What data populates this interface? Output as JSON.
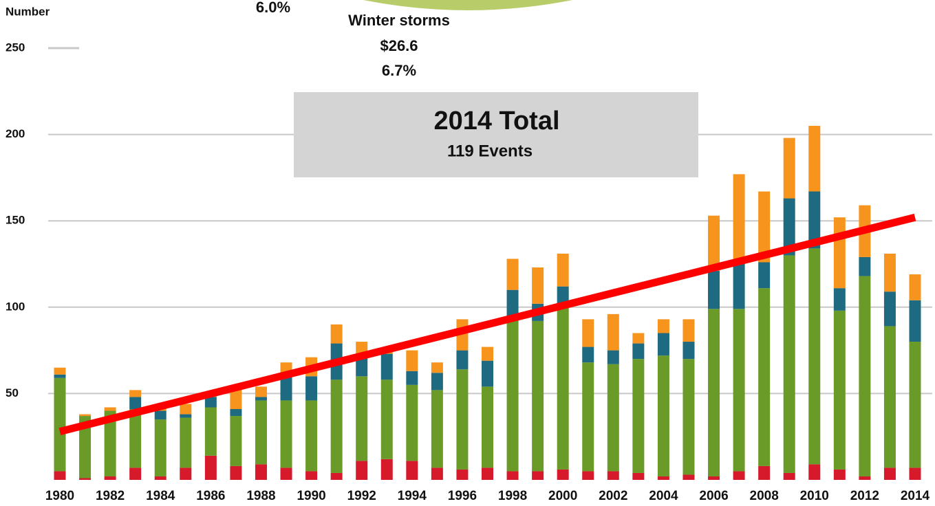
{
  "chart_data": {
    "type": "bar",
    "stacked": true,
    "y_label": "Number",
    "annotations": {
      "top_pct": "6.0%",
      "storm_name": "Winter storms",
      "storm_cost": "$26.6",
      "storm_pct": "6.7%",
      "box_title": "2014 Total",
      "box_subtitle": "119 Events"
    },
    "categories": [
      "1980",
      null,
      "1982",
      null,
      "1984",
      null,
      "1986",
      null,
      "1988",
      null,
      "1990",
      null,
      "1992",
      null,
      "1994",
      null,
      "1996",
      null,
      "1998",
      null,
      "2000",
      null,
      "2002",
      null,
      "2004",
      null,
      "2006",
      null,
      "2008",
      null,
      "2010",
      null,
      "2012",
      null,
      "2014"
    ],
    "series": [
      {
        "color": "#d7192c",
        "values": [
          5,
          1,
          2,
          7,
          2,
          7,
          14,
          8,
          9,
          7,
          5,
          4,
          11,
          12,
          11,
          7,
          6,
          7,
          5,
          5,
          6,
          5,
          5,
          4,
          2,
          3,
          2,
          5,
          8,
          4,
          9,
          6,
          2,
          7,
          7
        ]
      },
      {
        "color": "#6a9a28",
        "values": [
          54,
          36,
          38,
          34,
          33,
          29,
          28,
          29,
          37,
          39,
          41,
          54,
          49,
          46,
          44,
          45,
          58,
          47,
          88,
          87,
          94,
          63,
          62,
          66,
          70,
          67,
          97,
          94,
          103,
          126,
          125,
          92,
          116,
          82,
          73
        ]
      },
      {
        "color": "#1e6a80",
        "values": [
          2,
          0,
          0,
          7,
          5,
          2,
          6,
          4,
          2,
          14,
          14,
          21,
          11,
          15,
          8,
          10,
          11,
          15,
          17,
          10,
          12,
          9,
          8,
          9,
          13,
          10,
          22,
          28,
          15,
          33,
          33,
          13,
          11,
          20,
          24
        ]
      },
      {
        "color": "#f7941d",
        "values": [
          4,
          1,
          2,
          4,
          4,
          6,
          1,
          12,
          6,
          8,
          11,
          11,
          9,
          1,
          12,
          6,
          18,
          8,
          18,
          21,
          19,
          16,
          21,
          6,
          8,
          13,
          32,
          50,
          41,
          35,
          38,
          41,
          30,
          22,
          15
        ]
      }
    ],
    "trend": {
      "color": "#ff0000",
      "values": [
        28,
        152
      ]
    },
    "ylim": [
      0,
      250
    ],
    "yticks": [
      50,
      100,
      150,
      200,
      250
    ],
    "grid": true
  }
}
